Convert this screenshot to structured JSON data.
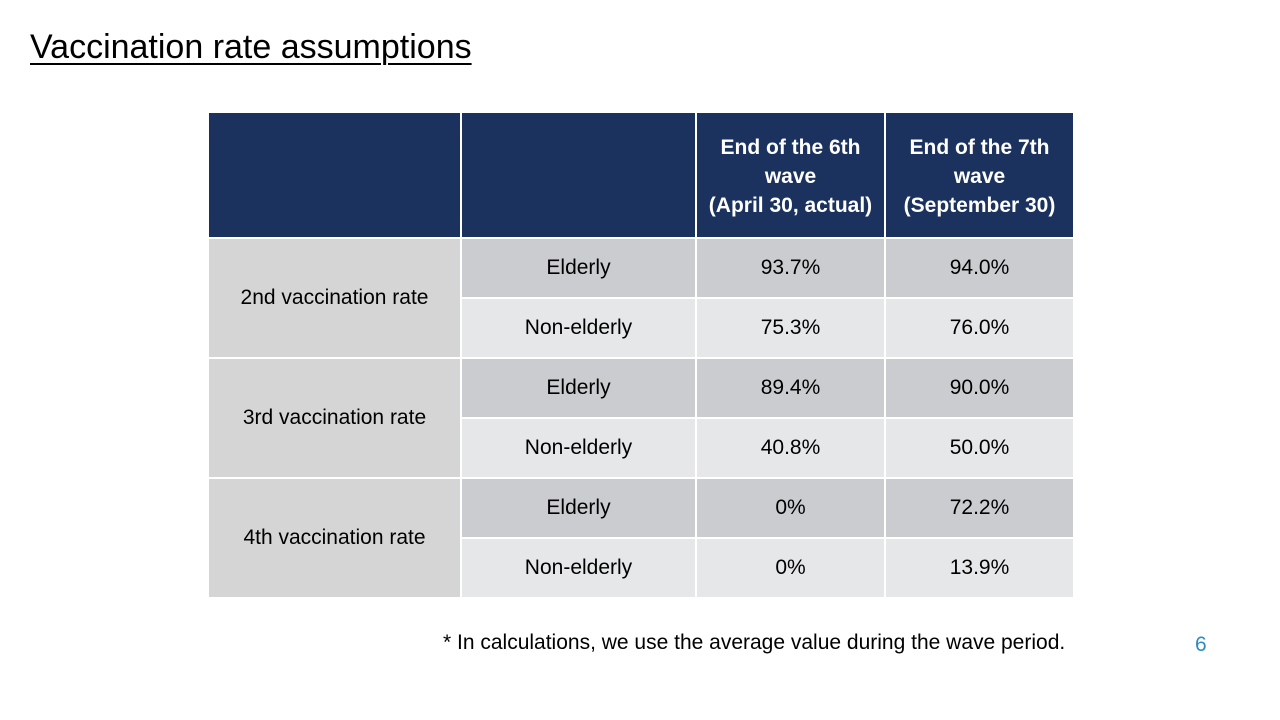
{
  "title": "Vaccination rate assumptions",
  "table": {
    "headers": [
      "",
      "",
      "End of the 6th wave\n(April 30, actual)",
      "End of the 7th wave\n(September 30)"
    ],
    "header_6th_line1": "End of the 6th wave",
    "header_6th_line2": "(April 30, actual)",
    "header_7th_line1": "End of the 7th wave",
    "header_7th_line2": "(September 30)",
    "groups": [
      {
        "label": "2nd vaccination rate",
        "rows": [
          {
            "category": "Elderly",
            "wave6": "93.7%",
            "wave7": "94.0%"
          },
          {
            "category": "Non-elderly",
            "wave6": "75.3%",
            "wave7": "76.0%"
          }
        ]
      },
      {
        "label": "3rd vaccination rate",
        "rows": [
          {
            "category": "Elderly",
            "wave6": "89.4%",
            "wave7": "90.0%"
          },
          {
            "category": "Non-elderly",
            "wave6": "40.8%",
            "wave7": "50.0%"
          }
        ]
      },
      {
        "label": "4th vaccination rate",
        "rows": [
          {
            "category": "Elderly",
            "wave6": "0%",
            "wave7": "72.2%"
          },
          {
            "category": "Non-elderly",
            "wave6": "0%",
            "wave7": "13.9%"
          }
        ]
      }
    ]
  },
  "footnote": "* In calculations, we use the average value during the wave period.",
  "page_number": "6",
  "colors": {
    "header_bg": "#1b325f",
    "group_bg": "#d5d5d6",
    "row_odd_bg": "#cbcccf",
    "row_even_bg": "#e6e7e9",
    "page_number": "#2e8bc0"
  }
}
